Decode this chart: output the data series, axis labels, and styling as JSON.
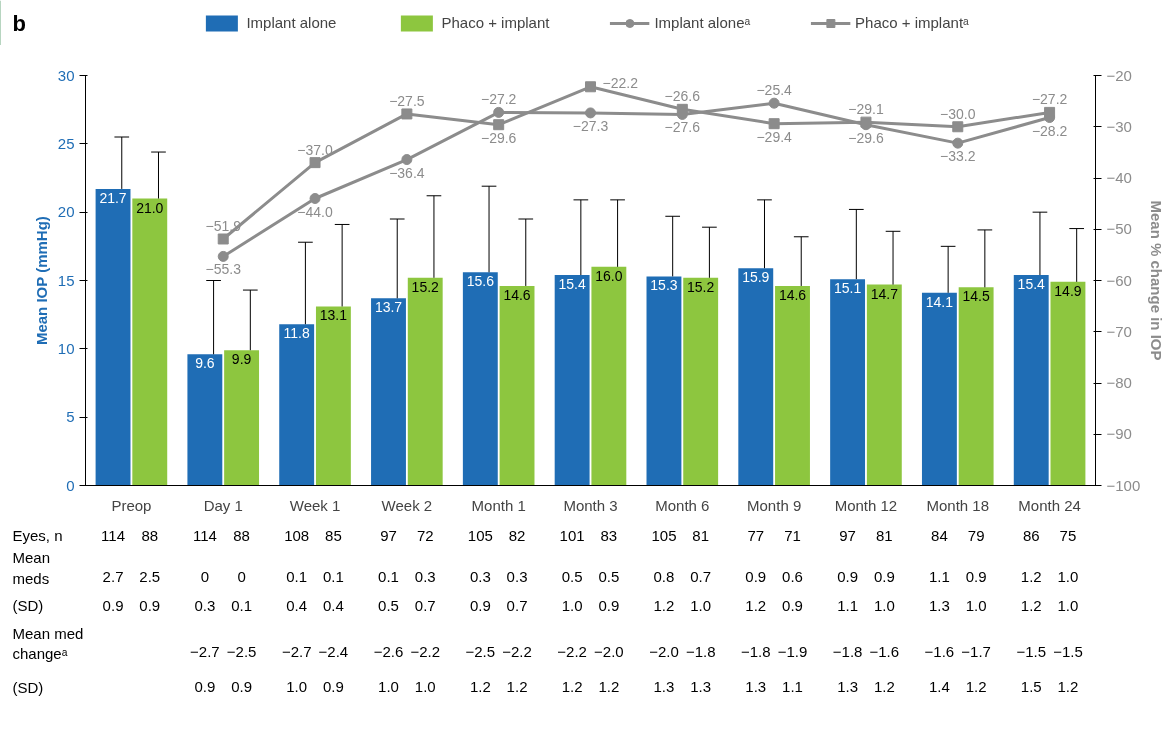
{
  "chart_data": {
    "type": "bar",
    "title": "b",
    "categories": [
      "Preop",
      "Day 1",
      "Week 1",
      "Week 2",
      "Month 1",
      "Month 3",
      "Month 6",
      "Month 9",
      "Month 12",
      "Month 18",
      "Month 24"
    ],
    "ylabel": "Mean IOP (mmHg)",
    "y2label": "Mean % change in IOP",
    "ylim": [
      0,
      30
    ],
    "yticks": [
      0,
      5,
      10,
      15,
      20,
      25,
      30
    ],
    "y2lim": [
      -100,
      -20
    ],
    "y2ticks": [
      {
        "value": -100,
        "label": "−100"
      },
      {
        "value": -90,
        "label": "−90"
      },
      {
        "value": -80,
        "label": "−80"
      },
      {
        "value": -70,
        "label": "−70"
      },
      {
        "value": -60,
        "label": "−60"
      },
      {
        "value": -50,
        "label": "−50"
      },
      {
        "value": -40,
        "label": "−40"
      },
      {
        "value": -30,
        "label": "−30"
      },
      {
        "value": -20,
        "label": "−20"
      }
    ],
    "legend": "top",
    "grid": false,
    "series": [
      {
        "name": "Implant alone",
        "color": "#1f6db5",
        "values": [
          21.7,
          9.6,
          11.8,
          13.7,
          15.6,
          15.4,
          15.3,
          15.9,
          15.1,
          14.1,
          15.4
        ],
        "value_labels": [
          "21.7",
          "9.6",
          "11.8",
          "13.7",
          "15.6",
          "15.4",
          "15.3",
          "15.9",
          "15.1",
          "14.1",
          "15.4"
        ],
        "errors": [
          [
            21.7,
            25.5
          ],
          [
            9.6,
            15.0
          ],
          [
            11.8,
            17.8
          ],
          [
            13.7,
            19.5
          ],
          [
            15.6,
            21.9
          ],
          [
            15.4,
            20.9
          ],
          [
            15.3,
            19.7
          ],
          [
            15.9,
            20.9
          ],
          [
            15.1,
            20.2
          ],
          [
            14.1,
            17.5
          ],
          [
            15.4,
            20.0
          ]
        ]
      },
      {
        "name": "Phaco + implant",
        "color": "#8dc63f",
        "values": [
          21.0,
          9.9,
          13.1,
          15.2,
          14.6,
          16.0,
          15.2,
          14.6,
          14.7,
          14.5,
          14.9
        ],
        "value_labels": [
          "21.0",
          "9.9",
          "13.1",
          "15.2",
          "14.6",
          "16.0",
          "15.2",
          "14.6",
          "14.7",
          "14.5",
          "14.9"
        ],
        "errors": [
          [
            21.0,
            24.4
          ],
          [
            9.9,
            14.3
          ],
          [
            13.1,
            19.1
          ],
          [
            15.2,
            21.2
          ],
          [
            14.6,
            19.5
          ],
          [
            16.0,
            20.9
          ],
          [
            15.2,
            18.9
          ],
          [
            14.6,
            18.2
          ],
          [
            14.7,
            18.6
          ],
          [
            14.5,
            18.7
          ],
          [
            14.9,
            18.8
          ]
        ]
      },
      {
        "name": "Implant aloneᵃ",
        "type": "line",
        "axis": "y2",
        "color": "#8c8c8c",
        "marker": "circle",
        "values": [
          null,
          -55.3,
          -44.0,
          -36.4,
          -27.2,
          -27.3,
          -27.6,
          -25.4,
          -29.6,
          -33.2,
          -28.2
        ],
        "value_labels": [
          null,
          "−55.3",
          "−44.0",
          "−36.4",
          "−27.2",
          "−27.3",
          "−27.6",
          "−25.4",
          "−29.6",
          "−33.2",
          "−28.2"
        ]
      },
      {
        "name": "Phaco + implantᵃ",
        "type": "line",
        "axis": "y2",
        "color": "#8c8c8c",
        "marker": "square",
        "values": [
          null,
          -51.9,
          -37.0,
          -27.5,
          -29.6,
          -22.2,
          -26.6,
          -29.4,
          -29.1,
          -30.0,
          -27.2
        ],
        "value_labels": [
          null,
          "−51.9",
          "−37.0",
          "−27.5",
          "−29.6",
          "−22.2",
          "−26.6",
          "−29.4",
          "−29.1",
          "−30.0",
          "−27.2"
        ]
      }
    ],
    "annotations": [
      "Eyes, n",
      "114 88 114 88 108 85 97 72 105 82 101 83 105 81 77 71 97 81 84 79 86 75",
      "Mean\nmeds",
      "2.7 2.5 0 0 0.1 0.1 0.1 0.3 0.3 0.3 0.5 0.5 0.8 0.7 0.9 0.6 0.9 0.9 1.1 0.9 1.2 1.0",
      "(SD)",
      "0.9 0.9 0.3 0.1 0.4 0.4 0.5 0.7 0.9 0.7 1.0 0.9 1.2 1.0 1.2 0.9 1.1 1.0 1.3 1.0 1.2 1.0",
      "Mean med\nchangeᵃ",
      "−2.7 −2.5 −2.7 −2.4 −2.6 −2.2 −2.5 −2.2 −2.2 −2.0 −2.0 −1.8 −1.8 −1.9 −1.8 −1.6 −1.6 −1.7 −1.5 −1.5",
      "(SD)",
      "0.9 0.9 1.0 0.9 1.0 1.0 1.2 1.2 1.2 1.2 1.3 1.3 1.3 1.1 1.3 1.2 1.4 1.2 1.5 1.2"
    ]
  }
}
